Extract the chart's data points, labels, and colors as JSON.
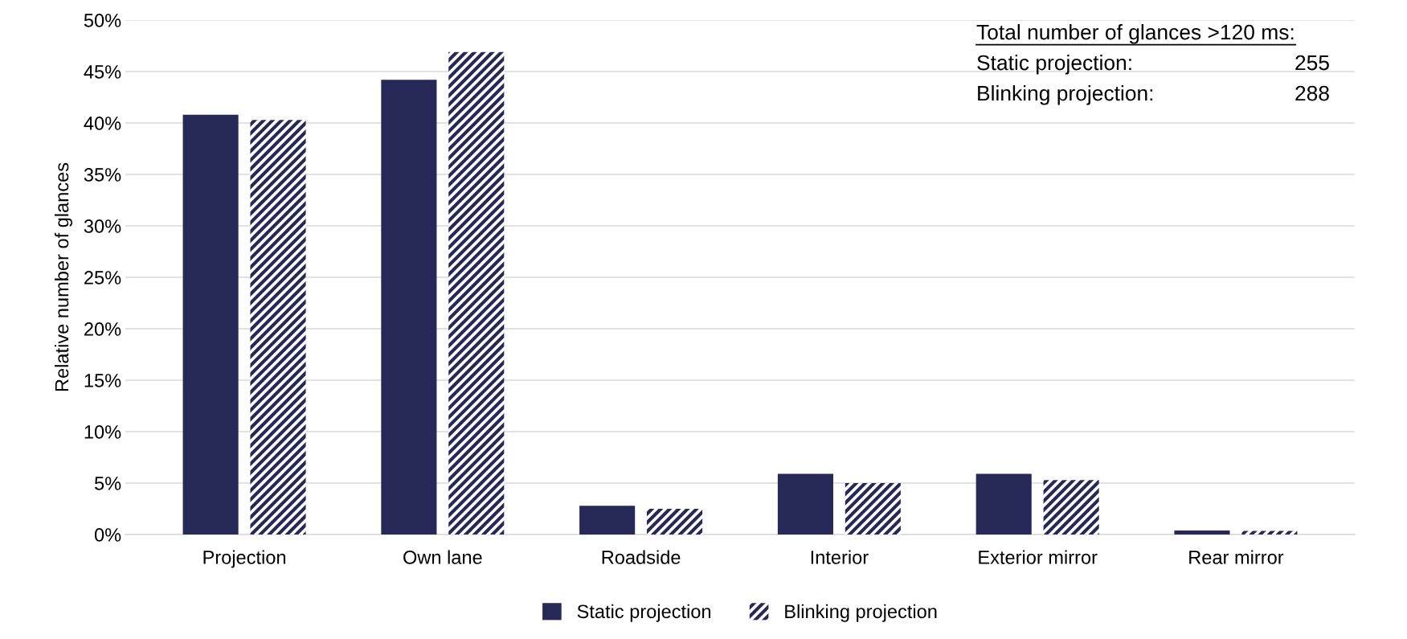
{
  "chart_data": {
    "type": "bar",
    "ylabel": "Relative number of glances",
    "categories": [
      "Projection",
      "Own lane",
      "Roadside",
      "Interior",
      "Exterior mirror",
      "Rear mirror"
    ],
    "series": [
      {
        "name": "Static projection",
        "color": "#262858",
        "values": [
          40.8,
          44.2,
          2.8,
          5.9,
          5.9,
          0.4
        ]
      },
      {
        "name": "Blinking projection",
        "color": "#262858",
        "values": [
          40.3,
          46.9,
          2.5,
          5.0,
          5.3,
          0.35
        ]
      }
    ],
    "ylim": [
      0,
      50
    ],
    "yticks": [
      {
        "value": 0,
        "label": "0%"
      },
      {
        "value": 5,
        "label": "5%"
      },
      {
        "value": 10,
        "label": "10%"
      },
      {
        "value": 15,
        "label": "15%"
      },
      {
        "value": 20,
        "label": "20%"
      },
      {
        "value": 25,
        "label": "25%"
      },
      {
        "value": 30,
        "label": "30%"
      },
      {
        "value": 35,
        "label": "35%"
      },
      {
        "value": 40,
        "label": "40%"
      },
      {
        "value": 45,
        "label": "45%"
      },
      {
        "value": 50,
        "label": "50%"
      }
    ],
    "grid": "y",
    "legend": "bottom",
    "annotations": [
      "Total number of glances >120 ms:",
      "Static projection:",
      "255",
      "Blinking projection:",
      "288"
    ]
  }
}
